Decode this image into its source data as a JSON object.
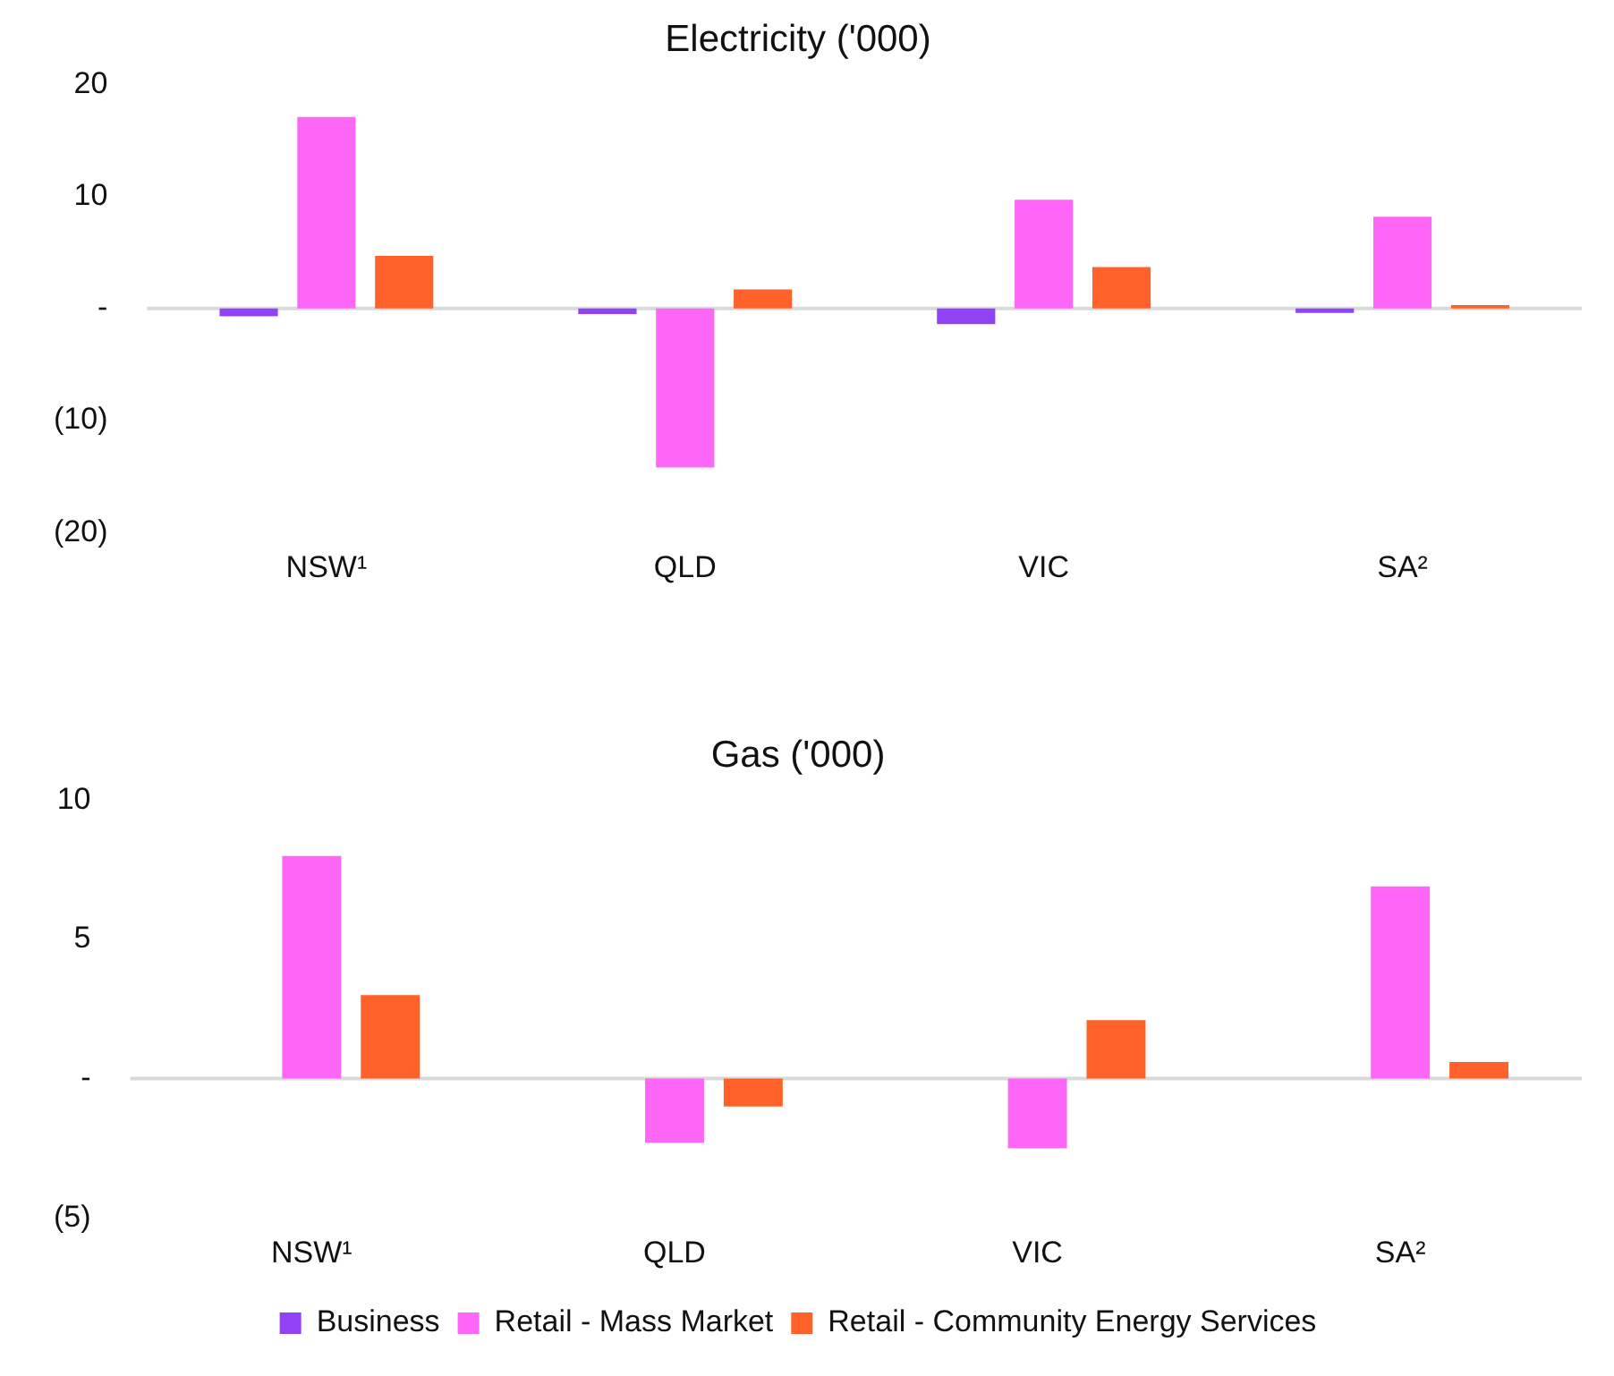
{
  "chart_data": [
    {
      "type": "bar",
      "title": "Electricity ('000)",
      "categories": [
        "NSW¹",
        "QLD",
        "VIC",
        "SA²"
      ],
      "series": [
        {
          "color": "#9142f5",
          "values": [
            -0.7,
            -0.5,
            -1.4,
            -0.4
          ]
        },
        {
          "color": "#fd66f6",
          "values": [
            17.1,
            -14.2,
            9.7,
            8.2
          ]
        },
        {
          "color": "#ff6128",
          "values": [
            4.7,
            1.7,
            3.7,
            0.3
          ]
        }
      ],
      "ylim": [
        -20,
        20
      ],
      "yticks": [
        {
          "value": -20,
          "label": "(20)"
        },
        {
          "value": -10,
          "label": "(10)"
        },
        {
          "value": 0,
          "label": "-"
        },
        20,
        10
      ],
      "ref_lines": [
        {
          "axis": "y",
          "value": 0,
          "color": "#d9d9d9"
        }
      ],
      "grid": false,
      "legend": false
    },
    {
      "type": "bar",
      "title": "Gas ('000)",
      "categories": [
        "NSW¹",
        "QLD",
        "VIC",
        "SA²"
      ],
      "series": [
        {
          "name": "Business",
          "color": "#9142f5",
          "values": [
            null,
            null,
            null,
            null
          ]
        },
        {
          "name": "Retail - Mass Market",
          "color": "#fd66f6",
          "values": [
            8.0,
            -2.3,
            -2.5,
            6.9
          ]
        },
        {
          "name": "Retail - Community Energy Services",
          "color": "#ff6128",
          "values": [
            3.0,
            -1.0,
            2.1,
            0.6
          ]
        }
      ],
      "ylim": [
        -5,
        10
      ],
      "yticks": [
        {
          "value": -5,
          "label": "(5)"
        },
        {
          "value": 0,
          "label": "-"
        },
        5,
        10
      ],
      "ref_lines": [
        {
          "axis": "y",
          "value": 0,
          "color": "#d9d9d9"
        }
      ],
      "grid": false,
      "legend": "bottom"
    }
  ]
}
